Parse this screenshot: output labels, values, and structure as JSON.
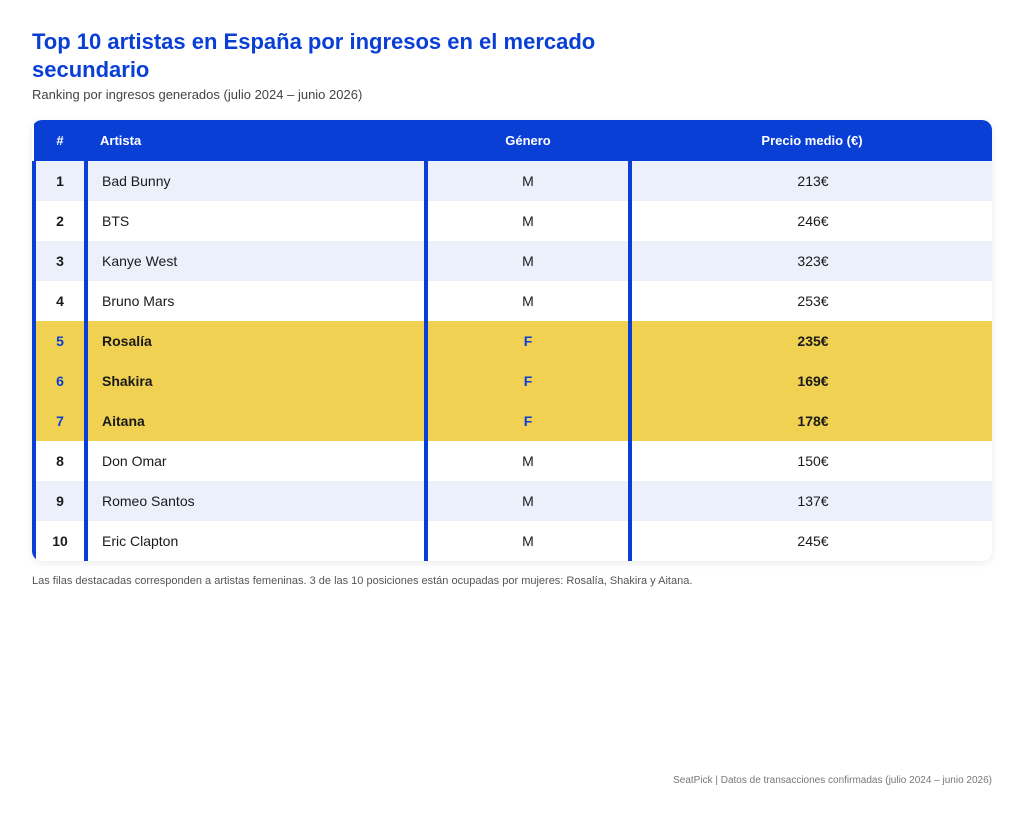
{
  "chart_data": {
    "type": "table",
    "title": "Top 10 artistas en España por ingresos en el mercado secundario",
    "subtitle": "Ranking por ingresos generados (julio 2024 – junio 2026)",
    "columns": [
      "#",
      "Artista",
      "Género",
      "Precio medio (€)"
    ],
    "rows": [
      {
        "rank": "1",
        "artist": "Bad Bunny",
        "genre": "M",
        "price": "213€",
        "highlight": false
      },
      {
        "rank": "2",
        "artist": "BTS",
        "genre": "M",
        "price": "246€",
        "highlight": false
      },
      {
        "rank": "3",
        "artist": "Kanye West",
        "genre": "M",
        "price": "323€",
        "highlight": false
      },
      {
        "rank": "4",
        "artist": "Bruno Mars",
        "genre": "M",
        "price": "253€",
        "highlight": false
      },
      {
        "rank": "5",
        "artist": "Rosalía",
        "genre": "F",
        "price": "235€",
        "highlight": true
      },
      {
        "rank": "6",
        "artist": "Shakira",
        "genre": "F",
        "price": "169€",
        "highlight": true
      },
      {
        "rank": "7",
        "artist": "Aitana",
        "genre": "F",
        "price": "178€",
        "highlight": true
      },
      {
        "rank": "8",
        "artist": "Don Omar",
        "genre": "M",
        "price": "150€",
        "highlight": false
      },
      {
        "rank": "9",
        "artist": "Romeo Santos",
        "genre": "M",
        "price": "137€",
        "highlight": false
      },
      {
        "rank": "10",
        "artist": "Eric Clapton",
        "genre": "M",
        "price": "245€",
        "highlight": false
      }
    ],
    "colors": {
      "header": "#0a3fd6",
      "highlight": "#f0d152",
      "alt_row": "#ebf0fb"
    }
  },
  "note": "Las filas destacadas corresponden a artistas femeninas. 3 de las 10 posiciones están ocupadas por mujeres: Rosalía, Shakira y Aitana.",
  "footer": "SeatPick | Datos de transacciones confirmadas (julio 2024 – junio 2026)"
}
